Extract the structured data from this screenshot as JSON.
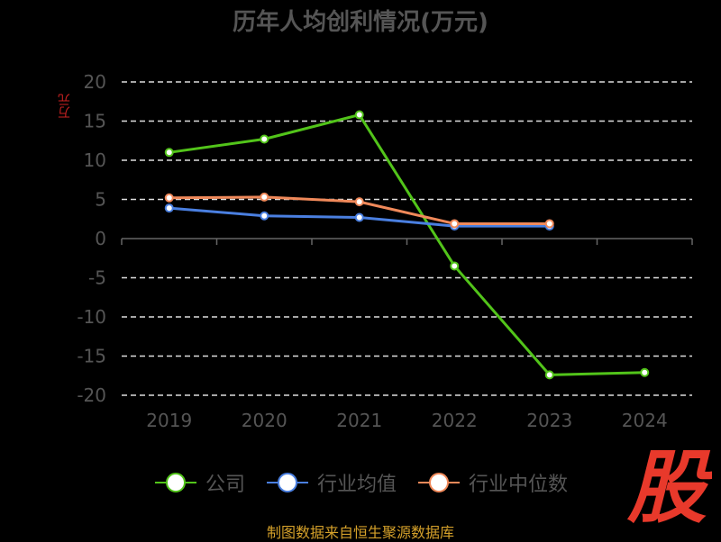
{
  "chart_data": {
    "type": "line",
    "title": "历年人均创利情况(万元)",
    "ylabel": "万元",
    "xlabel": "",
    "categories": [
      "2019",
      "2020",
      "2021",
      "2022",
      "2023",
      "2024"
    ],
    "yticks": [
      "20",
      "15",
      "10",
      "5",
      "0",
      "-5",
      "-10",
      "-15",
      "-20"
    ],
    "ylim": [
      -20,
      20
    ],
    "grid": true,
    "legend_position": "bottom",
    "series": [
      {
        "name": "公司",
        "color": "#52c41a",
        "values": [
          11.0,
          12.7,
          15.8,
          -3.5,
          -17.4,
          -17.1
        ]
      },
      {
        "name": "行业均值",
        "color": "#4a7fe0",
        "values": [
          3.9,
          2.9,
          2.7,
          1.6,
          1.6,
          null
        ]
      },
      {
        "name": "行业中位数",
        "color": "#f0895a",
        "values": [
          5.2,
          5.3,
          4.7,
          1.9,
          1.9,
          null
        ]
      }
    ]
  },
  "watermark_text": "股",
  "source": "制图数据来自恒生聚源数据库"
}
